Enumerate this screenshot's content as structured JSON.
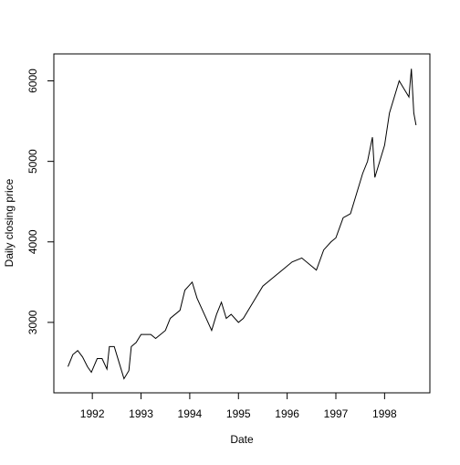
{
  "chart_data": {
    "type": "line",
    "xlabel": "Date",
    "ylabel": "Daily closing price",
    "x": [
      1991.5,
      1991.6,
      1991.7,
      1991.8,
      1991.9,
      1991.98,
      1992.1,
      1992.2,
      1992.3,
      1992.35,
      1992.45,
      1992.55,
      1992.65,
      1992.75,
      1992.8,
      1992.9,
      1993.0,
      1993.2,
      1993.3,
      1993.5,
      1993.6,
      1993.8,
      1993.9,
      1994.05,
      1994.15,
      1994.3,
      1994.45,
      1994.55,
      1994.65,
      1994.75,
      1994.85,
      1995.0,
      1995.1,
      1995.3,
      1995.5,
      1995.7,
      1995.9,
      1996.1,
      1996.3,
      1996.5,
      1996.6,
      1996.75,
      1996.9,
      1997.0,
      1997.15,
      1997.3,
      1997.45,
      1997.55,
      1997.65,
      1997.75,
      1997.8,
      1997.9,
      1998.0,
      1998.1,
      1998.2,
      1998.3,
      1998.4,
      1998.5,
      1998.55,
      1998.6,
      1998.646
    ],
    "values": [
      2450,
      2600,
      2650,
      2570,
      2450,
      2380,
      2550,
      2550,
      2420,
      2700,
      2700,
      2500,
      2300,
      2400,
      2700,
      2750,
      2850,
      2850,
      2800,
      2900,
      3050,
      3150,
      3400,
      3500,
      3300,
      3100,
      2900,
      3100,
      3250,
      3050,
      3100,
      3000,
      3050,
      3250,
      3450,
      3550,
      3650,
      3750,
      3800,
      3700,
      3650,
      3900,
      4000,
      4050,
      4300,
      4350,
      4650,
      4850,
      5000,
      5300,
      4800,
      5000,
      5200,
      5600,
      5800,
      6000,
      5900,
      5800,
      6150,
      5600,
      5450
    ],
    "color": "#000000",
    "xlim": [
      1991.21,
      1998.93
    ],
    "xticks": [
      1992,
      1993,
      1994,
      1995,
      1996,
      1997,
      1998
    ],
    "ylim": [
      2125,
      6335
    ],
    "yticks": [
      3000,
      4000,
      5000,
      6000
    ]
  }
}
